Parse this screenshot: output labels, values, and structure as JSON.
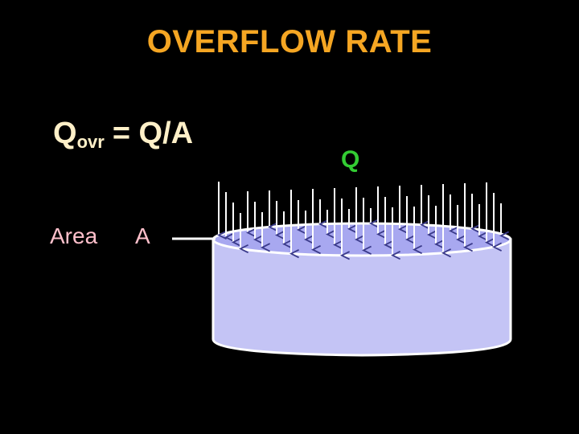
{
  "title": "OVERFLOW RATE",
  "formula": {
    "symbol": "Q",
    "subscript": "ovr",
    "rest": "= Q/A"
  },
  "area_text": "Area",
  "area_symbol": "A",
  "flow_label": "Q",
  "colors": {
    "title": "#f5a623",
    "formula": "#fff0c8",
    "area_text": "#ffc0cb",
    "flow_label": "#33cc33",
    "tank_fill": "#c4c4f5",
    "tank_top": "#a8a8f0",
    "arrows": "#ffffff"
  }
}
